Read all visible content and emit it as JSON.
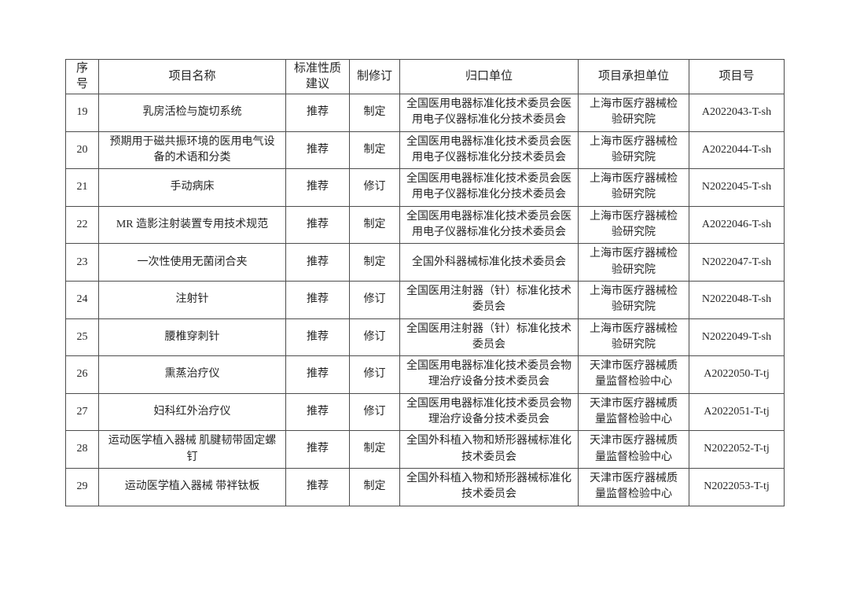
{
  "document": {
    "kind": "standards-project-table",
    "background_color": "#ffffff",
    "text_color": "#262626",
    "border_color": "#4d4d4d"
  },
  "table": {
    "columns": [
      {
        "key": "seq",
        "label": "序号"
      },
      {
        "key": "name",
        "label": "项目名称"
      },
      {
        "key": "nature",
        "label": "标准性质建议"
      },
      {
        "key": "revision",
        "label": "制修订"
      },
      {
        "key": "unit",
        "label": "归口单位"
      },
      {
        "key": "undertaker",
        "label": "项目承担单位"
      },
      {
        "key": "project_no",
        "label": "项目号"
      }
    ],
    "rows": [
      {
        "seq": "19",
        "name": "乳房活检与旋切系统",
        "nature": "推荐",
        "revision": "制定",
        "unit": "全国医用电器标准化技术委员会医用电子仪器标准化分技术委员会",
        "undertaker": "上海市医疗器械检验研究院",
        "project_no": "A2022043-T-sh"
      },
      {
        "seq": "20",
        "name": "预期用于磁共振环境的医用电气设备的术语和分类",
        "nature": "推荐",
        "revision": "制定",
        "unit": "全国医用电器标准化技术委员会医用电子仪器标准化分技术委员会",
        "undertaker": "上海市医疗器械检验研究院",
        "project_no": "A2022044-T-sh"
      },
      {
        "seq": "21",
        "name": "手动病床",
        "nature": "推荐",
        "revision": "修订",
        "unit": "全国医用电器标准化技术委员会医用电子仪器标准化分技术委员会",
        "undertaker": "上海市医疗器械检验研究院",
        "project_no": "N2022045-T-sh"
      },
      {
        "seq": "22",
        "name": "MR 造影注射装置专用技术规范",
        "nature": "推荐",
        "revision": "制定",
        "unit": "全国医用电器标准化技术委员会医用电子仪器标准化分技术委员会",
        "undertaker": "上海市医疗器械检验研究院",
        "project_no": "A2022046-T-sh"
      },
      {
        "seq": "23",
        "name": "一次性使用无菌闭合夹",
        "nature": "推荐",
        "revision": "制定",
        "unit": "全国外科器械标准化技术委员会",
        "undertaker": "上海市医疗器械检验研究院",
        "project_no": "N2022047-T-sh"
      },
      {
        "seq": "24",
        "name": "注射针",
        "nature": "推荐",
        "revision": "修订",
        "unit": "全国医用注射器（针）标准化技术委员会",
        "undertaker": "上海市医疗器械检验研究院",
        "project_no": "N2022048-T-sh"
      },
      {
        "seq": "25",
        "name": "腰椎穿刺针",
        "nature": "推荐",
        "revision": "修订",
        "unit": "全国医用注射器（针）标准化技术委员会",
        "undertaker": "上海市医疗器械检验研究院",
        "project_no": "N2022049-T-sh"
      },
      {
        "seq": "26",
        "name": "熏蒸治疗仪",
        "nature": "推荐",
        "revision": "修订",
        "unit": "全国医用电器标准化技术委员会物理治疗设备分技术委员会",
        "undertaker": "天津市医疗器械质量监督检验中心",
        "project_no": "A2022050-T-tj"
      },
      {
        "seq": "27",
        "name": "妇科红外治疗仪",
        "nature": "推荐",
        "revision": "修订",
        "unit": "全国医用电器标准化技术委员会物理治疗设备分技术委员会",
        "undertaker": "天津市医疗器械质量监督检验中心",
        "project_no": "A2022051-T-tj"
      },
      {
        "seq": "28",
        "name": "运动医学植入器械 肌腱韧带固定螺钉",
        "nature": "推荐",
        "revision": "制定",
        "unit": "全国外科植入物和矫形器械标准化技术委员会",
        "undertaker": "天津市医疗器械质量监督检验中心",
        "project_no": "N2022052-T-tj"
      },
      {
        "seq": "29",
        "name": "运动医学植入器械 带袢钛板",
        "nature": "推荐",
        "revision": "制定",
        "unit": "全国外科植入物和矫形器械标准化技术委员会",
        "undertaker": "天津市医疗器械质量监督检验中心",
        "project_no": "N2022053-T-tj"
      }
    ]
  }
}
